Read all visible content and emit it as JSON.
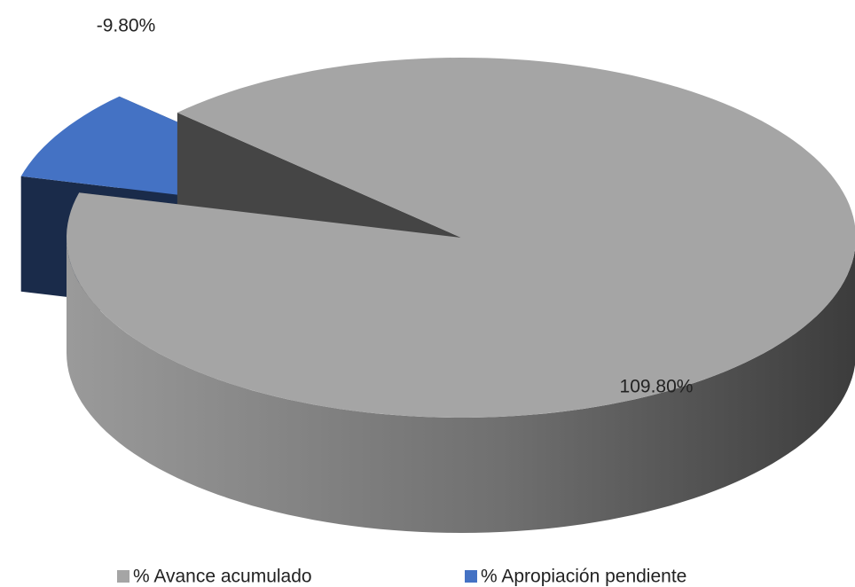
{
  "chart_data": {
    "type": "pie",
    "categories": [
      "% Avance acumulado",
      "% Apropiación pendiente"
    ],
    "values": [
      109.8,
      -9.8
    ],
    "value_labels": [
      "109.80%",
      "-9.80%"
    ],
    "colors": [
      "#a5a5a5",
      "#4472c4"
    ],
    "legend": "bottom"
  }
}
